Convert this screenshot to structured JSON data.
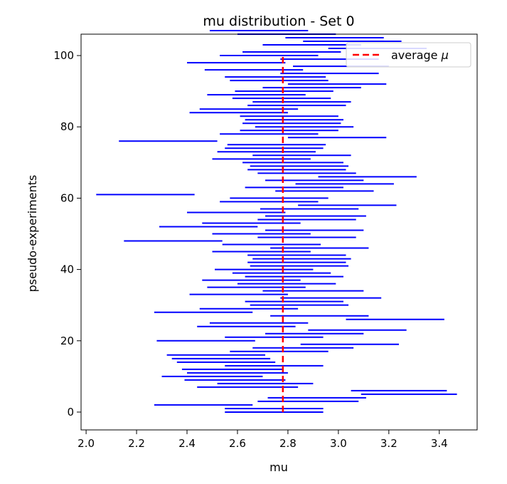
{
  "chart_data": {
    "type": "interval",
    "title": "mu distribution - Set 0",
    "xlabel": "mu",
    "ylabel": "pseudo-experiments",
    "xlim": [
      1.98,
      3.55
    ],
    "ylim": [
      -5,
      106
    ],
    "xticks": [
      "2.0",
      "2.2",
      "2.4",
      "2.6",
      "2.8",
      "3.0",
      "3.2",
      "3.4"
    ],
    "yticks": [
      "0",
      "20",
      "40",
      "60",
      "80",
      "100"
    ],
    "grid": false,
    "legend": {
      "position": "top-right",
      "entries": [
        "average μ"
      ]
    },
    "average_mu": 2.78,
    "colors": {
      "intervals": "#0000ff",
      "average": "#ff0000"
    },
    "series": [
      {
        "intervals": [
          [
            0,
            2.55,
            2.94
          ],
          [
            1,
            2.55,
            2.94
          ],
          [
            2,
            2.27,
            2.66
          ],
          [
            3,
            2.68,
            3.08
          ],
          [
            4,
            2.72,
            3.11
          ],
          [
            5,
            3.09,
            3.47
          ],
          [
            6,
            3.05,
            3.43
          ],
          [
            7,
            2.44,
            2.84
          ],
          [
            8,
            2.52,
            2.9
          ],
          [
            9,
            2.39,
            2.79
          ],
          [
            10,
            2.3,
            2.7
          ],
          [
            11,
            2.4,
            2.8
          ],
          [
            12,
            2.38,
            2.78
          ],
          [
            13,
            2.55,
            2.94
          ],
          [
            14,
            2.36,
            2.75
          ],
          [
            15,
            2.34,
            2.73
          ],
          [
            16,
            2.32,
            2.71
          ],
          [
            17,
            2.57,
            2.96
          ],
          [
            18,
            2.66,
            3.06
          ],
          [
            19,
            2.85,
            3.24
          ],
          [
            20,
            2.28,
            2.67
          ],
          [
            21,
            2.55,
            2.94
          ],
          [
            22,
            2.71,
            3.1
          ],
          [
            23,
            2.88,
            3.27
          ],
          [
            24,
            2.44,
            2.83
          ],
          [
            25,
            2.49,
            2.88
          ],
          [
            26,
            3.03,
            3.42
          ],
          [
            27,
            2.73,
            3.12
          ],
          [
            28,
            2.27,
            2.66
          ],
          [
            29,
            2.45,
            2.84
          ],
          [
            30,
            2.65,
            3.04
          ],
          [
            31,
            2.63,
            3.02
          ],
          [
            32,
            2.77,
            3.17
          ],
          [
            33,
            2.41,
            2.8
          ],
          [
            34,
            2.7,
            3.1
          ],
          [
            35,
            2.48,
            2.87
          ],
          [
            36,
            2.6,
            2.99
          ],
          [
            37,
            2.46,
            2.85
          ],
          [
            38,
            2.63,
            3.02
          ],
          [
            39,
            2.58,
            2.97
          ],
          [
            40,
            2.51,
            2.9
          ],
          [
            41,
            2.65,
            3.04
          ],
          [
            42,
            2.64,
            3.03
          ],
          [
            43,
            2.66,
            3.05
          ],
          [
            44,
            2.64,
            3.03
          ],
          [
            45,
            2.5,
            2.89
          ],
          [
            46,
            2.73,
            3.12
          ],
          [
            47,
            2.54,
            2.93
          ],
          [
            48,
            2.15,
            2.54
          ],
          [
            49,
            2.68,
            3.07
          ],
          [
            50,
            2.5,
            2.89
          ],
          [
            51,
            2.71,
            3.1
          ],
          [
            52,
            2.29,
            2.68
          ],
          [
            53,
            2.46,
            2.85
          ],
          [
            54,
            2.68,
            3.07
          ],
          [
            55,
            2.71,
            3.11
          ],
          [
            56,
            2.4,
            2.79
          ],
          [
            57,
            2.69,
            3.08
          ],
          [
            58,
            2.84,
            3.23
          ],
          [
            59,
            2.53,
            2.92
          ],
          [
            60,
            2.57,
            2.96
          ],
          [
            61,
            2.04,
            2.43
          ],
          [
            62,
            2.75,
            3.14
          ],
          [
            63,
            2.63,
            3.02
          ],
          [
            64,
            2.83,
            3.22
          ],
          [
            65,
            2.71,
            3.1
          ],
          [
            66,
            2.92,
            3.31
          ],
          [
            67,
            2.68,
            3.07
          ],
          [
            68,
            2.64,
            3.03
          ],
          [
            69,
            2.65,
            3.04
          ],
          [
            70,
            2.62,
            3.02
          ],
          [
            71,
            2.5,
            2.89
          ],
          [
            72,
            2.66,
            3.05
          ],
          [
            73,
            2.52,
            2.91
          ],
          [
            74,
            2.55,
            2.94
          ],
          [
            75,
            2.56,
            2.95
          ],
          [
            76,
            2.13,
            2.52
          ],
          [
            77,
            2.8,
            3.19
          ],
          [
            78,
            2.53,
            2.92
          ],
          [
            79,
            2.61,
            3.0
          ],
          [
            80,
            2.67,
            3.06
          ],
          [
            81,
            2.62,
            3.01
          ],
          [
            82,
            2.63,
            3.02
          ],
          [
            83,
            2.61,
            3.0
          ],
          [
            84,
            2.41,
            2.8
          ],
          [
            85,
            2.45,
            2.84
          ],
          [
            86,
            2.64,
            3.03
          ],
          [
            87,
            2.66,
            3.05
          ],
          [
            88,
            2.58,
            2.97
          ],
          [
            89,
            2.48,
            2.87
          ],
          [
            90,
            2.59,
            2.98
          ],
          [
            91,
            2.7,
            3.09
          ],
          [
            92,
            2.8,
            3.19
          ],
          [
            93,
            2.57,
            2.96
          ],
          [
            94,
            2.55,
            2.95
          ],
          [
            95,
            2.77,
            3.16
          ],
          [
            96,
            2.47,
            2.86
          ],
          [
            97,
            2.82,
            3.2
          ],
          [
            98,
            2.4,
            2.79
          ],
          [
            99,
            2.77,
            3.16
          ],
          [
            100,
            2.53,
            2.92
          ],
          [
            101,
            2.62,
            3.01
          ],
          [
            102,
            2.96,
            3.35
          ],
          [
            103,
            2.7,
            3.09
          ],
          [
            104,
            2.86,
            3.25
          ],
          [
            105,
            2.79,
            3.18
          ],
          [
            106,
            2.6,
            2.99
          ],
          [
            107,
            2.49,
            2.88
          ]
        ]
      }
    ]
  },
  "legend_label_text": "average ",
  "legend_label_symbol": "μ"
}
